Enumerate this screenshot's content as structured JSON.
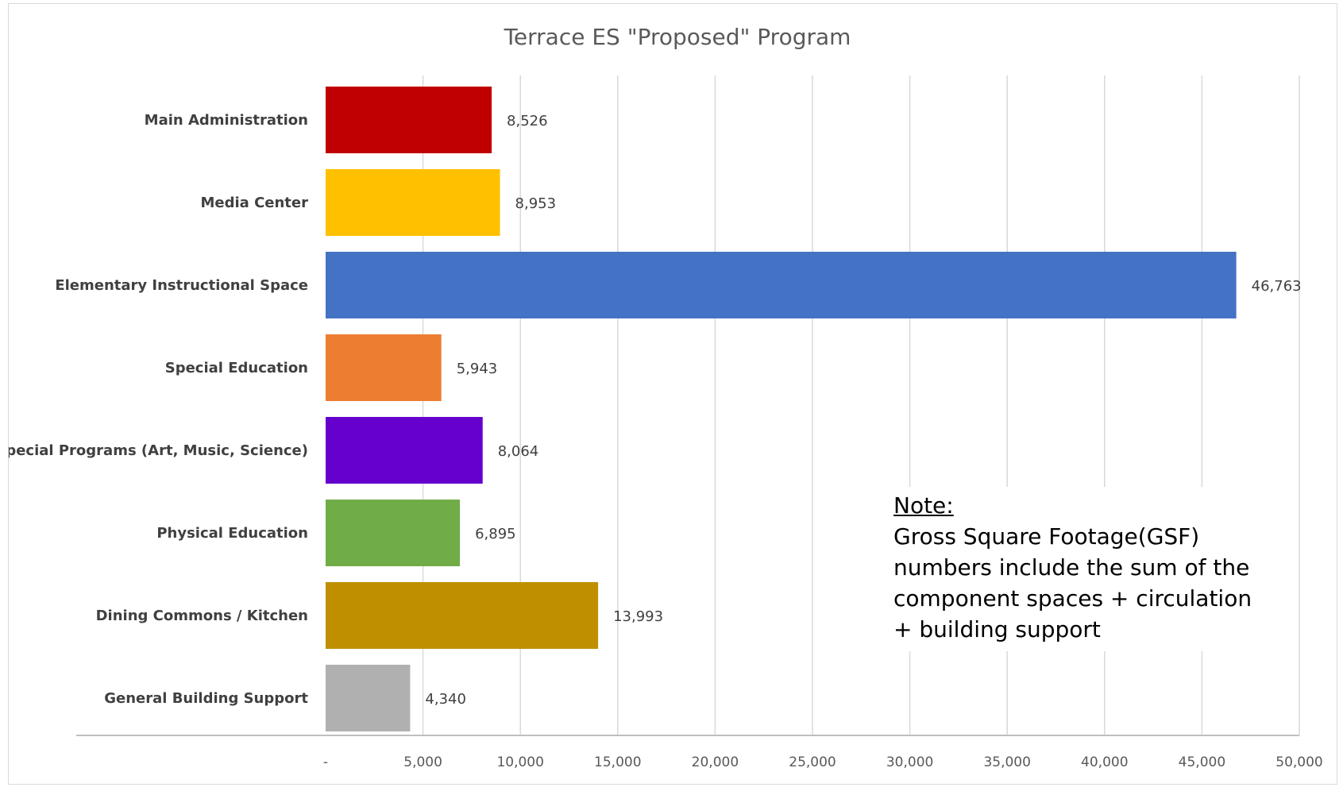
{
  "chart_data": {
    "type": "bar",
    "orientation": "horizontal",
    "title": "Terrace ES \"Proposed\" Program",
    "categories": [
      "Main Administration",
      "Media Center",
      "Elementary Instructional Space",
      "Special Education",
      "Special Programs (Art, Music, Science)",
      "Physical Education",
      "Dining Commons / Kitchen",
      "General Building Support"
    ],
    "values": [
      8526,
      8953,
      46763,
      5943,
      8064,
      6895,
      13993,
      4340
    ],
    "value_labels": [
      "8,526",
      "8,953",
      "46,763",
      "5,943",
      "8,064",
      "6,895",
      "13,993",
      "4,340"
    ],
    "colors": [
      "#c00000",
      "#ffc000",
      "#4472c4",
      "#ed7d31",
      "#6600cc",
      "#70ad47",
      "#bf8f00",
      "#b0b0b0"
    ],
    "xlim": [
      0,
      50000
    ],
    "xticks": [
      0,
      5000,
      10000,
      15000,
      20000,
      25000,
      30000,
      35000,
      40000,
      45000,
      50000
    ],
    "xtick_labels": [
      "-",
      "5,000",
      "10,000",
      "15,000",
      "20,000",
      "25,000",
      "30,000",
      "35,000",
      "40,000",
      "45,000",
      "50,000"
    ],
    "grid": true,
    "legend": "none"
  },
  "note": {
    "title": "Note:",
    "body": "Gross Square Footage(GSF) numbers include the sum of the component spaces + circulation + building support"
  }
}
